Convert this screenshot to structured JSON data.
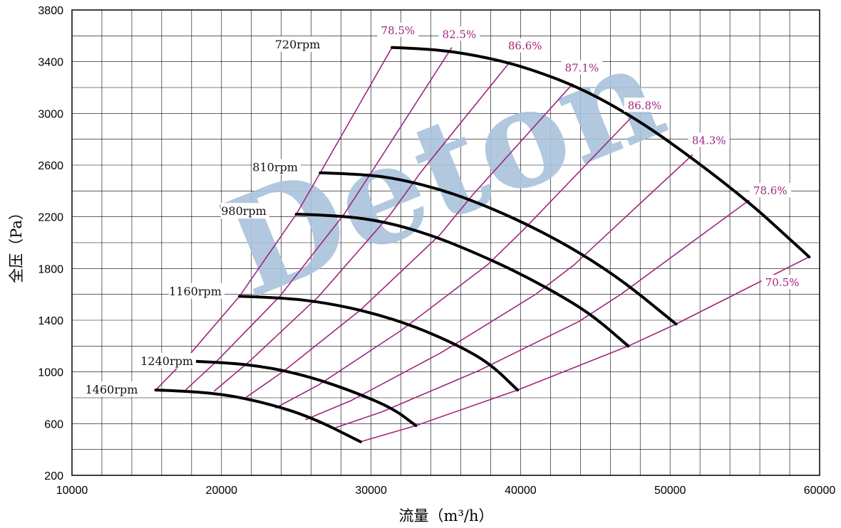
{
  "chart_data": {
    "type": "line",
    "xlabel": "流量（m³/h）",
    "ylabel": "全压（Pa）",
    "xlim": [
      10000,
      60000
    ],
    "ylim": [
      200,
      3800
    ],
    "x_ticks": [
      "10000",
      "20000",
      "30000",
      "40000",
      "50000",
      "60000"
    ],
    "y_ticks": [
      "200",
      "600",
      "1000",
      "1400",
      "1800",
      "2200",
      "2600",
      "3000",
      "3400",
      "3800"
    ],
    "grid": true,
    "watermark": "Deton",
    "colors": {
      "speed_curve": "#000000",
      "efficiency_line": "#a0257f",
      "efficiency_label": "#a0257f",
      "watermark": "#a9c2dc"
    },
    "speed_curves": [
      {
        "name": "720rpm",
        "points": [
          [
            15600,
            860
          ],
          [
            17000,
            855
          ],
          [
            20000,
            830
          ],
          [
            23000,
            760
          ],
          [
            26000,
            650
          ],
          [
            29300,
            460
          ]
        ]
      },
      {
        "name": "810rpm",
        "points": [
          [
            17500,
            1085
          ],
          [
            20000,
            1075
          ],
          [
            23000,
            1040
          ],
          [
            26000,
            960
          ],
          [
            29000,
            840
          ],
          [
            31500,
            715
          ],
          [
            33000,
            585
          ]
        ]
      },
      {
        "name": "980rpm",
        "points": [
          [
            21200,
            1585
          ],
          [
            24000,
            1575
          ],
          [
            27000,
            1535
          ],
          [
            30000,
            1460
          ],
          [
            33000,
            1350
          ],
          [
            36000,
            1195
          ],
          [
            38000,
            1060
          ],
          [
            39800,
            860
          ]
        ]
      },
      {
        "name": "1160rpm",
        "points": [
          [
            25000,
            2220
          ],
          [
            28000,
            2210
          ],
          [
            31000,
            2160
          ],
          [
            34000,
            2060
          ],
          [
            37000,
            1920
          ],
          [
            40000,
            1760
          ],
          [
            43000,
            1570
          ],
          [
            45000,
            1420
          ],
          [
            47200,
            1200
          ]
        ]
      },
      {
        "name": "1240rpm",
        "points": [
          [
            26600,
            2540
          ],
          [
            29500,
            2530
          ],
          [
            32000,
            2490
          ],
          [
            35000,
            2400
          ],
          [
            38000,
            2270
          ],
          [
            41000,
            2110
          ],
          [
            44000,
            1920
          ],
          [
            47000,
            1690
          ],
          [
            50400,
            1370
          ]
        ]
      },
      {
        "name": "1460rpm",
        "points": [
          [
            31400,
            3510
          ],
          [
            34000,
            3500
          ],
          [
            37000,
            3450
          ],
          [
            40000,
            3370
          ],
          [
            44000,
            3200
          ],
          [
            48000,
            2940
          ],
          [
            52000,
            2610
          ],
          [
            55500,
            2290
          ],
          [
            57500,
            2080
          ],
          [
            59300,
            1890
          ]
        ]
      }
    ],
    "efficiency_lines": [
      {
        "name": "78.5%",
        "points": [
          [
            15600,
            860
          ],
          [
            17500,
            1085
          ],
          [
            21200,
            1585
          ],
          [
            25000,
            2220
          ],
          [
            26600,
            2540
          ],
          [
            31400,
            3510
          ]
        ]
      },
      {
        "name": "82.5%",
        "points": [
          [
            17600,
            860
          ],
          [
            19700,
            1085
          ],
          [
            23900,
            1585
          ],
          [
            28200,
            2220
          ],
          [
            30000,
            2540
          ],
          [
            35400,
            3510
          ]
        ]
      },
      {
        "name": "86.6%",
        "points": [
          [
            19500,
            850
          ],
          [
            21900,
            1085
          ],
          [
            26500,
            1585
          ],
          [
            31300,
            2220
          ],
          [
            33300,
            2540
          ],
          [
            39300,
            3400
          ]
        ]
      },
      {
        "name": "87.1%",
        "points": [
          [
            21600,
            800
          ],
          [
            24200,
            1010
          ],
          [
            29300,
            1480
          ],
          [
            34600,
            2060
          ],
          [
            36800,
            2370
          ],
          [
            43500,
            3230
          ]
        ]
      },
      {
        "name": "86.8%",
        "points": [
          [
            23600,
            720
          ],
          [
            26500,
            900
          ],
          [
            32000,
            1320
          ],
          [
            37800,
            1830
          ],
          [
            40200,
            2100
          ],
          [
            47500,
            2980
          ]
        ]
      },
      {
        "name": "84.3%",
        "points": [
          [
            25600,
            630
          ],
          [
            28700,
            780
          ],
          [
            34700,
            1150
          ],
          [
            41000,
            1600
          ],
          [
            43600,
            1830
          ],
          [
            51500,
            2680
          ]
        ]
      },
      {
        "name": "78.6%",
        "points": [
          [
            27400,
            560
          ],
          [
            30700,
            690
          ],
          [
            37200,
            1010
          ],
          [
            43900,
            1390
          ],
          [
            46700,
            1600
          ],
          [
            55300,
            2330
          ]
        ]
      },
      {
        "name": "70.5%",
        "points": [
          [
            29300,
            460
          ],
          [
            33000,
            585
          ],
          [
            39800,
            860
          ],
          [
            47200,
            1200
          ],
          [
            50400,
            1370
          ],
          [
            59300,
            1890
          ]
        ]
      }
    ],
    "efficiency_label_anchors": [
      [
        31800,
        3630
      ],
      [
        35900,
        3600
      ],
      [
        40300,
        3510
      ],
      [
        44100,
        3340
      ],
      [
        48300,
        3050
      ],
      [
        52600,
        2780
      ],
      [
        56700,
        2390
      ],
      [
        57500,
        1680
      ]
    ],
    "rpm_label_anchors": [
      [
        26700,
        3520
      ],
      [
        25200,
        2570
      ],
      [
        23100,
        2230
      ],
      [
        20100,
        1610
      ],
      [
        18200,
        1070
      ],
      [
        14500,
        850
      ]
    ]
  }
}
